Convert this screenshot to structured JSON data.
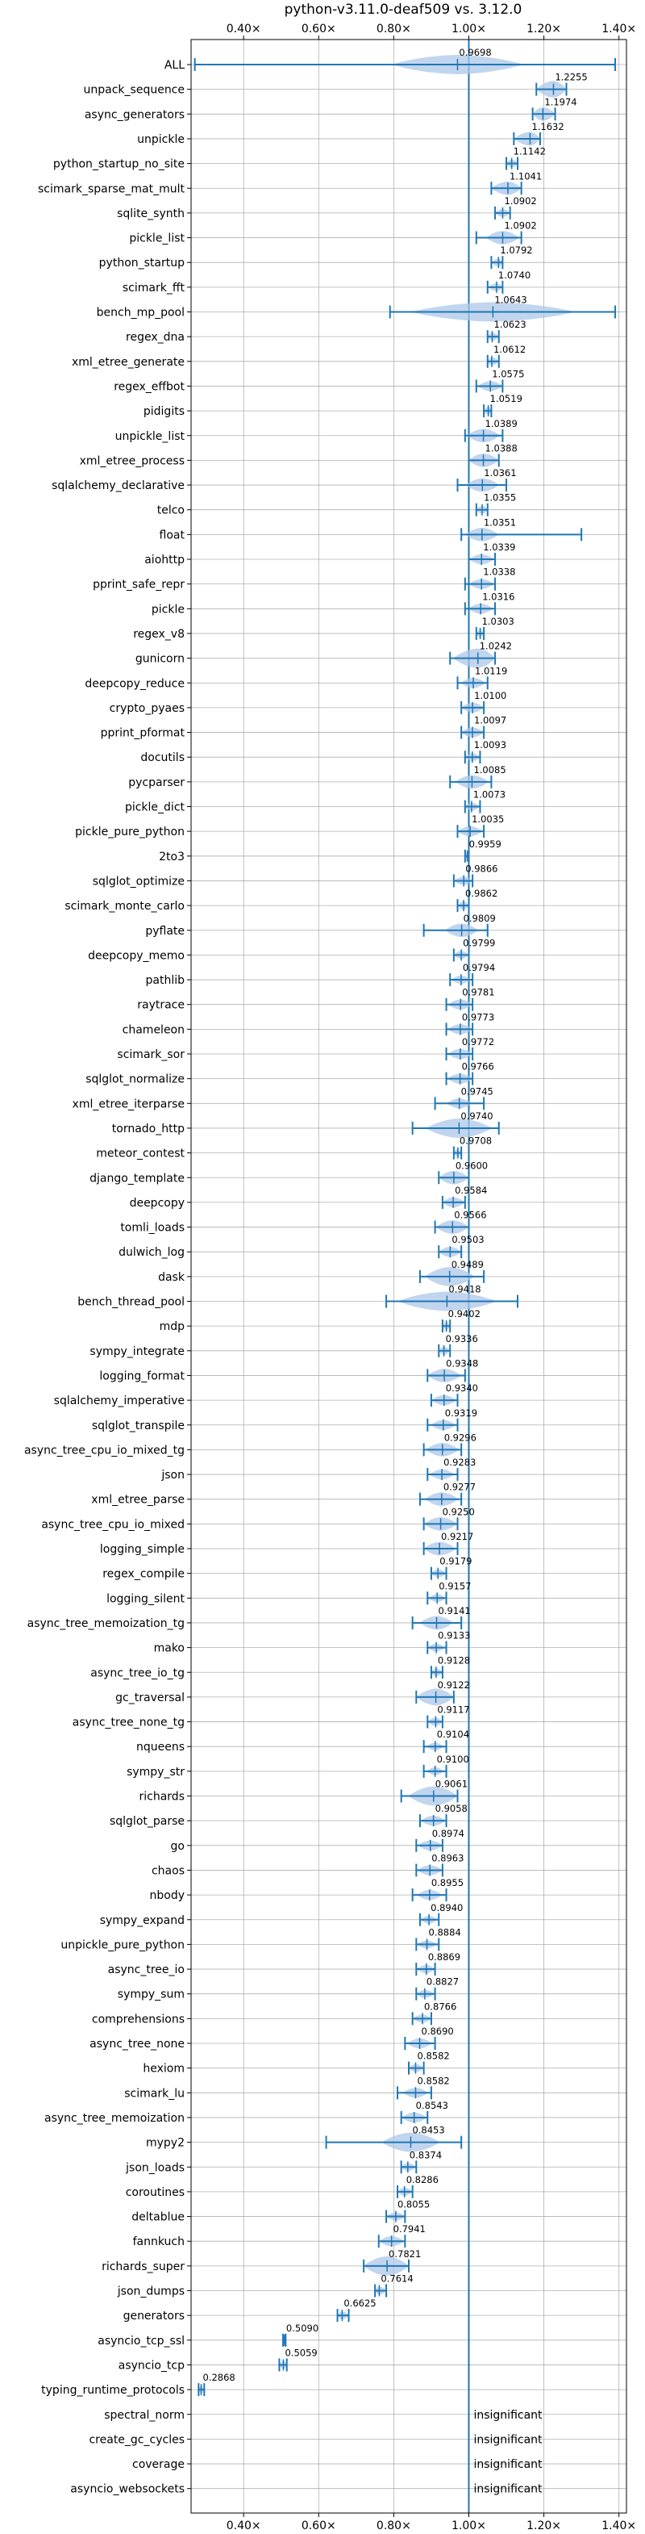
{
  "chart_data": {
    "type": "violin",
    "title": "python-v3.11.0-deaf509 vs. 3.12.0",
    "xlim": [
      0.26,
      1.42
    ],
    "xticks": [
      0.4,
      0.6,
      0.8,
      1.0,
      1.2,
      1.4
    ],
    "xtick_labels": [
      "0.40×",
      "0.60×",
      "0.80×",
      "1.00×",
      "1.20×",
      "1.40×"
    ],
    "reference_line": 1.0,
    "grid": true,
    "accent_color": "#1f77b4",
    "violin_color": "#aec7e8",
    "benchmarks": [
      {
        "name": "ALL",
        "value": 0.9698,
        "label": "0.9698",
        "min": 0.27,
        "max": 1.39,
        "spread": 0.08
      },
      {
        "name": "unpack_sequence",
        "value": 1.2255,
        "label": "1.2255",
        "min": 1.18,
        "max": 1.26,
        "spread": 0.025
      },
      {
        "name": "async_generators",
        "value": 1.1974,
        "label": "1.1974",
        "min": 1.17,
        "max": 1.23,
        "spread": 0.02
      },
      {
        "name": "unpickle",
        "value": 1.1632,
        "label": "1.1632",
        "min": 1.12,
        "max": 1.19,
        "spread": 0.02
      },
      {
        "name": "python_startup_no_site",
        "value": 1.1142,
        "label": "1.1142",
        "min": 1.1,
        "max": 1.13,
        "spread": 0.01
      },
      {
        "name": "scimark_sparse_mat_mult",
        "value": 1.1041,
        "label": "1.1041",
        "min": 1.06,
        "max": 1.14,
        "spread": 0.02
      },
      {
        "name": "sqlite_synth",
        "value": 1.0902,
        "label": "1.0902",
        "min": 1.07,
        "max": 1.11,
        "spread": 0.01
      },
      {
        "name": "pickle_list",
        "value": 1.0902,
        "label": "1.0902",
        "min": 1.02,
        "max": 1.14,
        "spread": 0.02
      },
      {
        "name": "python_startup",
        "value": 1.0792,
        "label": "1.0792",
        "min": 1.06,
        "max": 1.09,
        "spread": 0.01
      },
      {
        "name": "scimark_fft",
        "value": 1.074,
        "label": "1.0740",
        "min": 1.05,
        "max": 1.09,
        "spread": 0.01
      },
      {
        "name": "bench_mp_pool",
        "value": 1.0643,
        "label": "1.0643",
        "min": 0.79,
        "max": 1.39,
        "spread": 0.1
      },
      {
        "name": "regex_dna",
        "value": 1.0623,
        "label": "1.0623",
        "min": 1.05,
        "max": 1.08,
        "spread": 0.01
      },
      {
        "name": "xml_etree_generate",
        "value": 1.0612,
        "label": "1.0612",
        "min": 1.05,
        "max": 1.08,
        "spread": 0.01
      },
      {
        "name": "regex_effbot",
        "value": 1.0575,
        "label": "1.0575",
        "min": 1.02,
        "max": 1.09,
        "spread": 0.015
      },
      {
        "name": "pidigits",
        "value": 1.0519,
        "label": "1.0519",
        "min": 1.04,
        "max": 1.06,
        "spread": 0.008
      },
      {
        "name": "unpickle_list",
        "value": 1.0389,
        "label": "1.0389",
        "min": 0.99,
        "max": 1.09,
        "spread": 0.02
      },
      {
        "name": "xml_etree_process",
        "value": 1.0388,
        "label": "1.0388",
        "min": 1.0,
        "max": 1.08,
        "spread": 0.02
      },
      {
        "name": "sqlalchemy_declarative",
        "value": 1.0361,
        "label": "1.0361",
        "min": 0.97,
        "max": 1.1,
        "spread": 0.02
      },
      {
        "name": "telco",
        "value": 1.0355,
        "label": "1.0355",
        "min": 1.02,
        "max": 1.05,
        "spread": 0.01
      },
      {
        "name": "float",
        "value": 1.0351,
        "label": "1.0351",
        "min": 0.98,
        "max": 1.3,
        "spread": 0.02
      },
      {
        "name": "aiohttp",
        "value": 1.0339,
        "label": "1.0339",
        "min": 1.0,
        "max": 1.07,
        "spread": 0.015
      },
      {
        "name": "pprint_safe_repr",
        "value": 1.0338,
        "label": "1.0338",
        "min": 0.99,
        "max": 1.07,
        "spread": 0.015
      },
      {
        "name": "pickle",
        "value": 1.0316,
        "label": "1.0316",
        "min": 0.99,
        "max": 1.07,
        "spread": 0.015
      },
      {
        "name": "regex_v8",
        "value": 1.0303,
        "label": "1.0303",
        "min": 1.02,
        "max": 1.04,
        "spread": 0.008
      },
      {
        "name": "gunicorn",
        "value": 1.0242,
        "label": "1.0242",
        "min": 0.95,
        "max": 1.07,
        "spread": 0.03
      },
      {
        "name": "deepcopy_reduce",
        "value": 1.0119,
        "label": "1.0119",
        "min": 0.97,
        "max": 1.05,
        "spread": 0.015
      },
      {
        "name": "crypto_pyaes",
        "value": 1.01,
        "label": "1.0100",
        "min": 0.98,
        "max": 1.04,
        "spread": 0.015
      },
      {
        "name": "pprint_pformat",
        "value": 1.0097,
        "label": "1.0097",
        "min": 0.98,
        "max": 1.04,
        "spread": 0.015
      },
      {
        "name": "docutils",
        "value": 1.0093,
        "label": "1.0093",
        "min": 0.99,
        "max": 1.03,
        "spread": 0.01
      },
      {
        "name": "pycparser",
        "value": 1.0085,
        "label": "1.0085",
        "min": 0.95,
        "max": 1.06,
        "spread": 0.02
      },
      {
        "name": "pickle_dict",
        "value": 1.0073,
        "label": "1.0073",
        "min": 0.99,
        "max": 1.03,
        "spread": 0.01
      },
      {
        "name": "pickle_pure_python",
        "value": 1.0035,
        "label": "1.0035",
        "min": 0.97,
        "max": 1.04,
        "spread": 0.015
      },
      {
        "name": "2to3",
        "value": 0.9959,
        "label": "0.9959",
        "min": 0.99,
        "max": 1.0,
        "spread": 0.005
      },
      {
        "name": "sqlglot_optimize",
        "value": 0.9866,
        "label": "0.9866",
        "min": 0.96,
        "max": 1.01,
        "spread": 0.012
      },
      {
        "name": "scimark_monte_carlo",
        "value": 0.9862,
        "label": "0.9862",
        "min": 0.97,
        "max": 1.0,
        "spread": 0.01
      },
      {
        "name": "pyflate",
        "value": 0.9809,
        "label": "0.9809",
        "min": 0.88,
        "max": 1.05,
        "spread": 0.02
      },
      {
        "name": "deepcopy_memo",
        "value": 0.9799,
        "label": "0.9799",
        "min": 0.96,
        "max": 1.0,
        "spread": 0.01
      },
      {
        "name": "pathlib",
        "value": 0.9794,
        "label": "0.9794",
        "min": 0.95,
        "max": 1.01,
        "spread": 0.012
      },
      {
        "name": "raytrace",
        "value": 0.9781,
        "label": "0.9781",
        "min": 0.94,
        "max": 1.01,
        "spread": 0.015
      },
      {
        "name": "chameleon",
        "value": 0.9773,
        "label": "0.9773",
        "min": 0.94,
        "max": 1.01,
        "spread": 0.015
      },
      {
        "name": "scimark_sor",
        "value": 0.9772,
        "label": "0.9772",
        "min": 0.94,
        "max": 1.01,
        "spread": 0.015
      },
      {
        "name": "sqlglot_normalize",
        "value": 0.9766,
        "label": "0.9766",
        "min": 0.94,
        "max": 1.01,
        "spread": 0.015
      },
      {
        "name": "xml_etree_iterparse",
        "value": 0.9745,
        "label": "0.9745",
        "min": 0.91,
        "max": 1.04,
        "spread": 0.015
      },
      {
        "name": "tornado_http",
        "value": 0.974,
        "label": "0.9740",
        "min": 0.85,
        "max": 1.08,
        "spread": 0.04
      },
      {
        "name": "meteor_contest",
        "value": 0.9708,
        "label": "0.9708",
        "min": 0.96,
        "max": 0.98,
        "spread": 0.008
      },
      {
        "name": "django_template",
        "value": 0.96,
        "label": "0.9600",
        "min": 0.92,
        "max": 1.0,
        "spread": 0.02
      },
      {
        "name": "deepcopy",
        "value": 0.9584,
        "label": "0.9584",
        "min": 0.93,
        "max": 0.99,
        "spread": 0.015
      },
      {
        "name": "tomli_loads",
        "value": 0.9566,
        "label": "0.9566",
        "min": 0.91,
        "max": 1.0,
        "spread": 0.02
      },
      {
        "name": "dulwich_log",
        "value": 0.9503,
        "label": "0.9503",
        "min": 0.92,
        "max": 0.98,
        "spread": 0.015
      },
      {
        "name": "dask",
        "value": 0.9489,
        "label": "0.9489",
        "min": 0.87,
        "max": 1.04,
        "spread": 0.03
      },
      {
        "name": "bench_thread_pool",
        "value": 0.9418,
        "label": "0.9418",
        "min": 0.78,
        "max": 1.13,
        "spread": 0.06
      },
      {
        "name": "mdp",
        "value": 0.9402,
        "label": "0.9402",
        "min": 0.93,
        "max": 0.95,
        "spread": 0.008
      },
      {
        "name": "sympy_integrate",
        "value": 0.9336,
        "label": "0.9336",
        "min": 0.92,
        "max": 0.95,
        "spread": 0.008
      },
      {
        "name": "logging_format",
        "value": 0.9348,
        "label": "0.9348",
        "min": 0.89,
        "max": 0.99,
        "spread": 0.02
      },
      {
        "name": "sqlalchemy_imperative",
        "value": 0.934,
        "label": "0.9340",
        "min": 0.9,
        "max": 0.97,
        "spread": 0.015
      },
      {
        "name": "sqlglot_transpile",
        "value": 0.9319,
        "label": "0.9319",
        "min": 0.89,
        "max": 0.97,
        "spread": 0.015
      },
      {
        "name": "async_tree_cpu_io_mixed_tg",
        "value": 0.9296,
        "label": "0.9296",
        "min": 0.88,
        "max": 0.98,
        "spread": 0.02
      },
      {
        "name": "json",
        "value": 0.9283,
        "label": "0.9283",
        "min": 0.89,
        "max": 0.97,
        "spread": 0.015
      },
      {
        "name": "xml_etree_parse",
        "value": 0.9277,
        "label": "0.9277",
        "min": 0.87,
        "max": 0.98,
        "spread": 0.02
      },
      {
        "name": "async_tree_cpu_io_mixed",
        "value": 0.925,
        "label": "0.9250",
        "min": 0.88,
        "max": 0.97,
        "spread": 0.02
      },
      {
        "name": "logging_simple",
        "value": 0.9217,
        "label": "0.9217",
        "min": 0.88,
        "max": 0.97,
        "spread": 0.02
      },
      {
        "name": "regex_compile",
        "value": 0.9179,
        "label": "0.9179",
        "min": 0.9,
        "max": 0.94,
        "spread": 0.01
      },
      {
        "name": "logging_silent",
        "value": 0.9157,
        "label": "0.9157",
        "min": 0.89,
        "max": 0.94,
        "spread": 0.01
      },
      {
        "name": "async_tree_memoization_tg",
        "value": 0.9141,
        "label": "0.9141",
        "min": 0.85,
        "max": 0.98,
        "spread": 0.02
      },
      {
        "name": "mako",
        "value": 0.9133,
        "label": "0.9133",
        "min": 0.89,
        "max": 0.94,
        "spread": 0.01
      },
      {
        "name": "async_tree_io_tg",
        "value": 0.9128,
        "label": "0.9128",
        "min": 0.9,
        "max": 0.93,
        "spread": 0.008
      },
      {
        "name": "gc_traversal",
        "value": 0.9122,
        "label": "0.9122",
        "min": 0.86,
        "max": 0.96,
        "spread": 0.025
      },
      {
        "name": "async_tree_none_tg",
        "value": 0.9117,
        "label": "0.9117",
        "min": 0.89,
        "max": 0.93,
        "spread": 0.01
      },
      {
        "name": "nqueens",
        "value": 0.9104,
        "label": "0.9104",
        "min": 0.88,
        "max": 0.94,
        "spread": 0.01
      },
      {
        "name": "sympy_str",
        "value": 0.91,
        "label": "0.9100",
        "min": 0.88,
        "max": 0.94,
        "spread": 0.01
      },
      {
        "name": "richards",
        "value": 0.9061,
        "label": "0.9061",
        "min": 0.82,
        "max": 0.97,
        "spread": 0.03
      },
      {
        "name": "sqlglot_parse",
        "value": 0.9058,
        "label": "0.9058",
        "min": 0.87,
        "max": 0.94,
        "spread": 0.015
      },
      {
        "name": "go",
        "value": 0.8974,
        "label": "0.8974",
        "min": 0.86,
        "max": 0.93,
        "spread": 0.015
      },
      {
        "name": "chaos",
        "value": 0.8963,
        "label": "0.8963",
        "min": 0.86,
        "max": 0.93,
        "spread": 0.015
      },
      {
        "name": "nbody",
        "value": 0.8955,
        "label": "0.8955",
        "min": 0.85,
        "max": 0.94,
        "spread": 0.015
      },
      {
        "name": "sympy_expand",
        "value": 0.894,
        "label": "0.8940",
        "min": 0.87,
        "max": 0.92,
        "spread": 0.01
      },
      {
        "name": "unpickle_pure_python",
        "value": 0.8884,
        "label": "0.8884",
        "min": 0.86,
        "max": 0.92,
        "spread": 0.012
      },
      {
        "name": "async_tree_io",
        "value": 0.8869,
        "label": "0.8869",
        "min": 0.86,
        "max": 0.91,
        "spread": 0.012
      },
      {
        "name": "sympy_sum",
        "value": 0.8827,
        "label": "0.8827",
        "min": 0.86,
        "max": 0.91,
        "spread": 0.012
      },
      {
        "name": "comprehensions",
        "value": 0.8766,
        "label": "0.8766",
        "min": 0.85,
        "max": 0.9,
        "spread": 0.012
      },
      {
        "name": "async_tree_none",
        "value": 0.869,
        "label": "0.8690",
        "min": 0.83,
        "max": 0.91,
        "spread": 0.015
      },
      {
        "name": "hexiom",
        "value": 0.8582,
        "label": "0.8582",
        "min": 0.84,
        "max": 0.88,
        "spread": 0.01
      },
      {
        "name": "scimark_lu",
        "value": 0.8582,
        "label": "0.8582",
        "min": 0.81,
        "max": 0.9,
        "spread": 0.015
      },
      {
        "name": "async_tree_memoization",
        "value": 0.8543,
        "label": "0.8543",
        "min": 0.82,
        "max": 0.89,
        "spread": 0.015
      },
      {
        "name": "mypy2",
        "value": 0.8453,
        "label": "0.8453",
        "min": 0.62,
        "max": 0.98,
        "spread": 0.035
      },
      {
        "name": "json_loads",
        "value": 0.8374,
        "label": "0.8374",
        "min": 0.82,
        "max": 0.86,
        "spread": 0.01
      },
      {
        "name": "coroutines",
        "value": 0.8286,
        "label": "0.8286",
        "min": 0.81,
        "max": 0.85,
        "spread": 0.01
      },
      {
        "name": "deltablue",
        "value": 0.8055,
        "label": "0.8055",
        "min": 0.78,
        "max": 0.83,
        "spread": 0.012
      },
      {
        "name": "fannkuch",
        "value": 0.7941,
        "label": "0.7941",
        "min": 0.76,
        "max": 0.83,
        "spread": 0.015
      },
      {
        "name": "richards_super",
        "value": 0.7821,
        "label": "0.7821",
        "min": 0.72,
        "max": 0.84,
        "spread": 0.03
      },
      {
        "name": "json_dumps",
        "value": 0.7614,
        "label": "0.7614",
        "min": 0.75,
        "max": 0.78,
        "spread": 0.01
      },
      {
        "name": "generators",
        "value": 0.6625,
        "label": "0.6625",
        "min": 0.65,
        "max": 0.68,
        "spread": 0.008
      },
      {
        "name": "asyncio_tcp_ssl",
        "value": 0.509,
        "label": "0.5090",
        "min": 0.505,
        "max": 0.512,
        "spread": 0.003
      },
      {
        "name": "asyncio_tcp",
        "value": 0.5059,
        "label": "0.5059",
        "min": 0.495,
        "max": 0.515,
        "spread": 0.005
      },
      {
        "name": "typing_runtime_protocols",
        "value": 0.2868,
        "label": "0.2868",
        "min": 0.28,
        "max": 0.295,
        "spread": 0.005
      },
      {
        "name": "spectral_norm",
        "value": null,
        "label": "insignificant"
      },
      {
        "name": "create_gc_cycles",
        "value": null,
        "label": "insignificant"
      },
      {
        "name": "coverage",
        "value": null,
        "label": "insignificant"
      },
      {
        "name": "asyncio_websockets",
        "value": null,
        "label": "insignificant"
      }
    ]
  }
}
